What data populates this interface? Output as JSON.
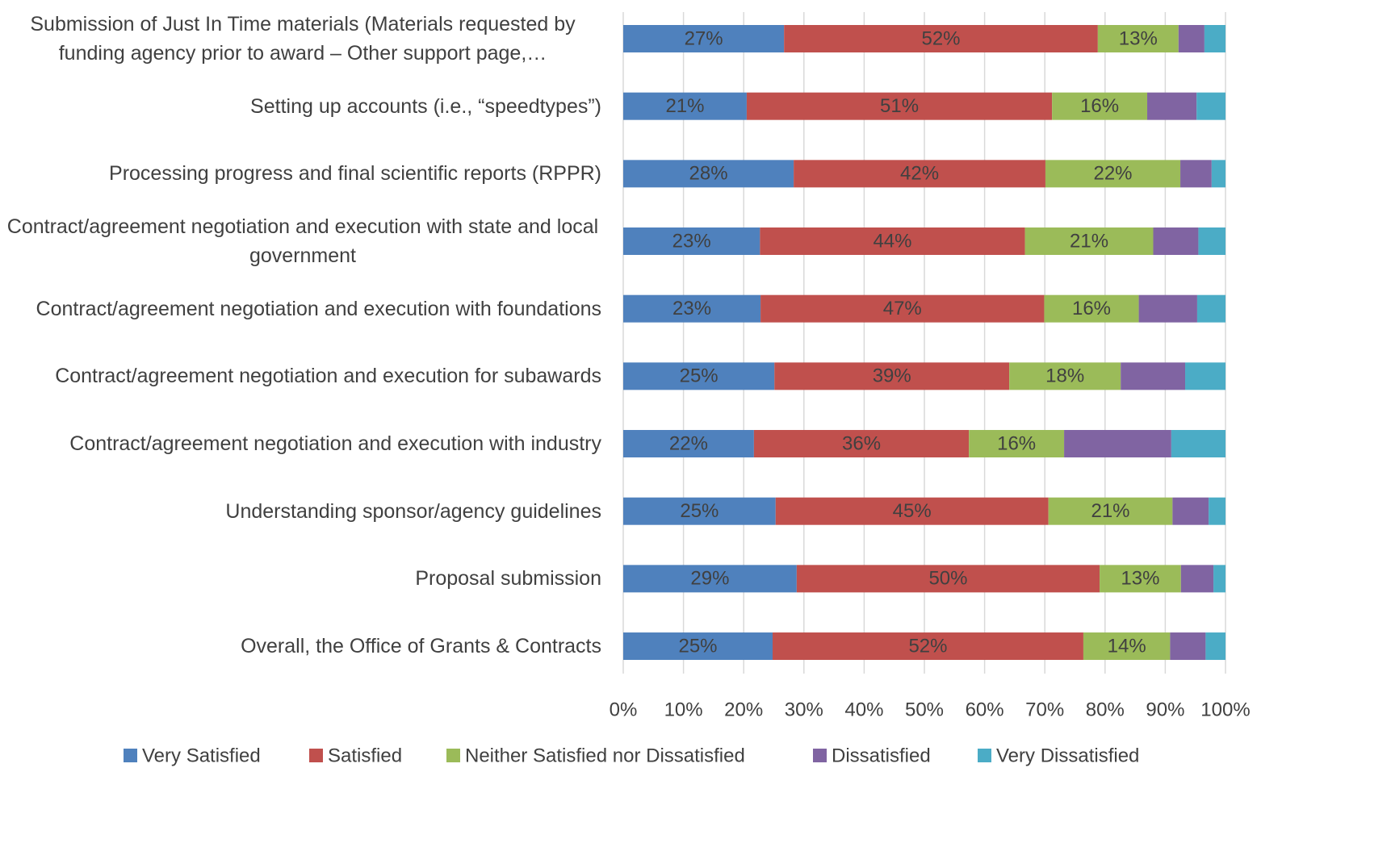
{
  "chart_data": {
    "type": "stacked_barh",
    "categories": [
      "Submission of Just In Time materials (Materials requested by funding agency prior to award – Other support page,…",
      "Setting up accounts (i.e., “speedtypes”)",
      "Processing progress and final scientific reports (RPPR)",
      "Contract/agreement negotiation and execution with state and local government",
      "Contract/agreement negotiation and execution with foundations",
      "Contract/agreement negotiation and execution for subawards",
      "Contract/agreement negotiation and execution with industry",
      "Understanding sponsor/agency guidelines",
      "Proposal submission",
      "Overall, the Office of Grants & Contracts"
    ],
    "series": [
      {
        "name": "Very Satisfied",
        "color": "#4f81bd",
        "values": [
          26.7,
          20.5,
          28.3,
          22.7,
          22.8,
          25.1,
          21.7,
          25.3,
          28.8,
          24.8
        ],
        "value_labels": [
          "27%",
          "21%",
          "28%",
          "23%",
          "23%",
          "25%",
          "22%",
          "25%",
          "29%",
          "25%"
        ]
      },
      {
        "name": "Satisfied",
        "color": "#c0504d",
        "values": [
          52.1,
          50.7,
          41.8,
          44.0,
          47.1,
          39.0,
          35.7,
          45.3,
          50.3,
          51.6
        ],
        "value_labels": [
          "52%",
          "51%",
          "42%",
          "44%",
          "47%",
          "39%",
          "36%",
          "45%",
          "50%",
          "52%"
        ]
      },
      {
        "name": "Neither Satisfied nor Dissatisfied",
        "color": "#9bbb59",
        "values": [
          13.4,
          15.8,
          22.4,
          21.3,
          15.7,
          18.5,
          15.8,
          20.6,
          13.5,
          14.4
        ],
        "value_labels": [
          "13%",
          "16%",
          "22%",
          "21%",
          "16%",
          "18%",
          "16%",
          "21%",
          "13%",
          "14%"
        ]
      },
      {
        "name": "Dissatisfied",
        "color": "#8064a2",
        "values": [
          4.3,
          8.2,
          5.2,
          7.5,
          9.7,
          10.7,
          17.8,
          6.0,
          5.4,
          5.9
        ]
      },
      {
        "name": "Very Dissatisfied",
        "color": "#4bacc6",
        "values": [
          3.5,
          4.8,
          2.3,
          4.5,
          4.7,
          6.7,
          9.0,
          2.8,
          2.0,
          3.3
        ]
      }
    ],
    "xlim": [
      0,
      100
    ],
    "xticks": [
      {
        "value": 0,
        "label": "0%"
      },
      {
        "value": 10,
        "label": "10%"
      },
      {
        "value": 20,
        "label": "20%"
      },
      {
        "value": 30,
        "label": "30%"
      },
      {
        "value": 40,
        "label": "40%"
      },
      {
        "value": 50,
        "label": "50%"
      },
      {
        "value": 60,
        "label": "60%"
      },
      {
        "value": 70,
        "label": "70%"
      },
      {
        "value": 80,
        "label": "80%"
      },
      {
        "value": 90,
        "label": "90%"
      },
      {
        "value": 100,
        "label": "100%"
      }
    ],
    "grid": true,
    "legend": "bottom"
  }
}
